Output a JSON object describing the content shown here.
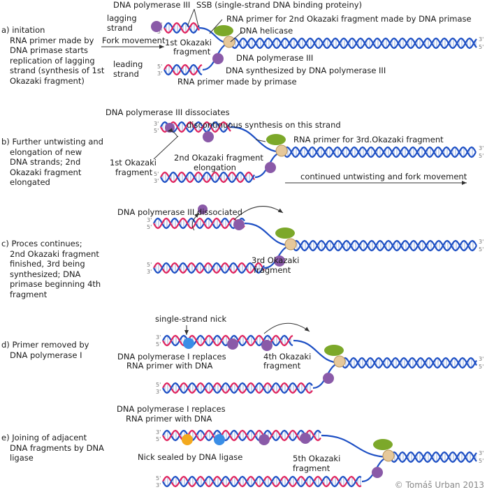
{
  "colors": {
    "strand_blue": "#1d4fc4",
    "strand_red": "#e0245e",
    "primer_green": "#a8c83a",
    "pol3": "#8a5aa8",
    "helicase": "#e6c89a",
    "primase": "#7ca82a",
    "pol1": "#3a8ee6",
    "ligase": "#f3a91e"
  },
  "panels": [
    {
      "heading": "a) initation",
      "lines": [
        "RNA primer made by",
        "DNA primase starts",
        "replication of lagging",
        "strand (synthesis of 1st",
        "Okazaki fragment)"
      ]
    },
    {
      "heading": "b) Further untwisting and",
      "lines": [
        "elongation of new",
        "DNA strands; 2nd",
        "Okazaki fragment",
        "elongated"
      ]
    },
    {
      "heading": "c) Proces continues;",
      "lines": [
        "2nd Okazaki fragment",
        "finished, 3rd being",
        "synthesized; DNA",
        "primase beginning 4th",
        "fragment"
      ]
    },
    {
      "heading": "d) Primer removed by",
      "lines": [
        "DNA polymerase I"
      ]
    },
    {
      "heading": "e) Joining of adjacent",
      "lines": [
        "DNA fragments by DNA",
        "ligase"
      ]
    }
  ],
  "labels": {
    "a_pol3_top": "DNA polymerase III",
    "a_ssb": "SSB (single-strand DNA binding proteiny)",
    "a_lagging_1": "lagging",
    "a_lagging_2": "strand",
    "a_primer2": "RNA primer for 2nd Okazaki fragment made by DNA primase",
    "a_helicase": "DNA helicase",
    "a_fork": "Fork movement",
    "a_okazaki1_1": "1st Okazaki",
    "a_okazaki1_2": "fragment",
    "a_pol3_bottom": "DNA polymerase III",
    "a_leading_1": "leading",
    "a_leading_2": "strand",
    "a_synth": "DNA synthesized by DNA polymerase III",
    "a_primer": "RNA primer made by primase",
    "b_dissociates": "DNA polymerase III dissociates",
    "b_discontinuous": "discontinuous synthesis on this strand",
    "b_primer3": "RNA primer for 3rd.Okazaki fragment",
    "b_okazaki1_1": "1st Okazaki",
    "b_okazaki1_2": "fragment",
    "b_okazaki2_1": "2nd Okazaki fragment",
    "b_okazaki2_2": "elongation",
    "b_continued": "continued untwisting and fork movement",
    "c_dissociated": "DNA polymerase III dissociated",
    "c_okazaki3_1": "3rd Okazaki",
    "c_okazaki3_2": "fragment",
    "d_nick": "single-strand nick",
    "d_pol1_1": "DNA polymerase I replaces",
    "d_pol1_2": "RNA primer with DNA",
    "d_okazaki4_1": "4th Okazaki",
    "d_okazaki4_2": "fragment",
    "e_pol1_1": "DNA polymerase I replaces",
    "e_pol1_2": "RNA primer with DNA",
    "e_ligase": "Nick sealed by DNA ligase",
    "e_okazaki5_1": "5th Okazaki",
    "e_okazaki5_2": "fragment"
  },
  "ends": {
    "three": "3'",
    "five": "5'"
  },
  "copyright": "© Tomáš Urban 2013"
}
